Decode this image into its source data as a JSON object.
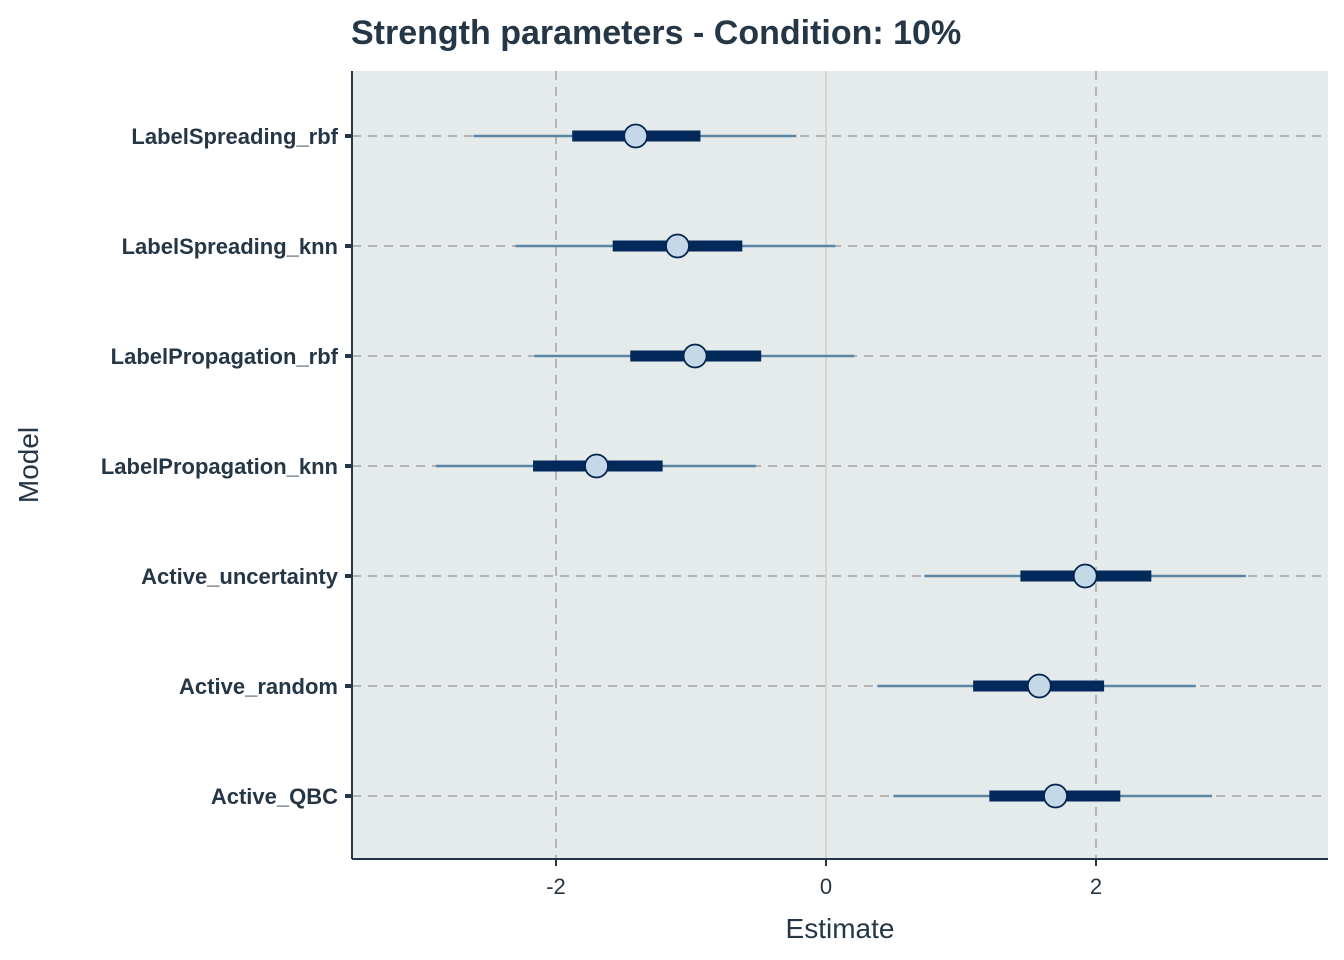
{
  "chart_data": {
    "type": "interval",
    "title": "Strength parameters - Condition: 10%",
    "xlabel": "Estimate",
    "ylabel": "Model",
    "xlim": [
      -3.5,
      3.7
    ],
    "xticks": [
      -2,
      0,
      2
    ],
    "xtick_labels": [
      "-2",
      "0",
      "2"
    ],
    "reference_lines": [
      -2,
      0,
      2
    ],
    "categories": [
      "LabelSpreading_rbf",
      "LabelSpreading_knn",
      "LabelPropagation_rbf",
      "LabelPropagation_knn",
      "Active_uncertainty",
      "Active_random",
      "Active_QBC"
    ],
    "estimates": [
      -1.41,
      -1.1,
      -0.97,
      -1.7,
      1.92,
      1.58,
      1.7
    ],
    "inner_interval": [
      [
        -1.88,
        -0.93
      ],
      [
        -1.58,
        -0.62
      ],
      [
        -1.45,
        -0.48
      ],
      [
        -2.17,
        -1.21
      ],
      [
        1.44,
        2.41
      ],
      [
        1.09,
        2.06
      ],
      [
        1.21,
        2.18
      ]
    ],
    "outer_interval": [
      [
        -2.61,
        -0.22
      ],
      [
        -2.3,
        0.07
      ],
      [
        -2.16,
        0.21
      ],
      [
        -2.89,
        -0.52
      ],
      [
        0.73,
        3.11
      ],
      [
        0.38,
        2.74
      ],
      [
        0.5,
        2.86
      ]
    ],
    "grid": true,
    "colors": {
      "panel_bg": "#e5ebeb",
      "point_fill": "#c5d8e8",
      "point_stroke": "#03244f",
      "inner_interval": "#03295a",
      "outer_interval": "#5a85a5",
      "grid": "#b3b5b6",
      "zero_line": "#d5d5d5",
      "text": "#253746"
    }
  }
}
